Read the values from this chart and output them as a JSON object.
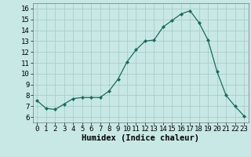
{
  "x": [
    0,
    1,
    2,
    3,
    4,
    5,
    6,
    7,
    8,
    9,
    10,
    11,
    12,
    13,
    14,
    15,
    16,
    17,
    18,
    19,
    20,
    21,
    22,
    23
  ],
  "y": [
    7.5,
    6.8,
    6.7,
    7.2,
    7.7,
    7.8,
    7.8,
    7.8,
    8.4,
    9.5,
    11.1,
    12.2,
    13.0,
    13.1,
    14.3,
    14.9,
    15.5,
    15.8,
    14.7,
    13.1,
    10.2,
    8.0,
    7.0,
    6.1
  ],
  "xlabel": "Humidex (Indice chaleur)",
  "ylabel": "",
  "ylim": [
    5.5,
    16.5
  ],
  "xlim": [
    -0.5,
    23.5
  ],
  "yticks": [
    6,
    7,
    8,
    9,
    10,
    11,
    12,
    13,
    14,
    15,
    16
  ],
  "xticks": [
    0,
    1,
    2,
    3,
    4,
    5,
    6,
    7,
    8,
    9,
    10,
    11,
    12,
    13,
    14,
    15,
    16,
    17,
    18,
    19,
    20,
    21,
    22,
    23
  ],
  "line_color": "#1a6b5a",
  "marker_color": "#1a6b5a",
  "bg_color": "#c8e8e5",
  "grid_color": "#a8ceca",
  "xlabel_fontsize": 7.5,
  "tick_fontsize": 6.5
}
